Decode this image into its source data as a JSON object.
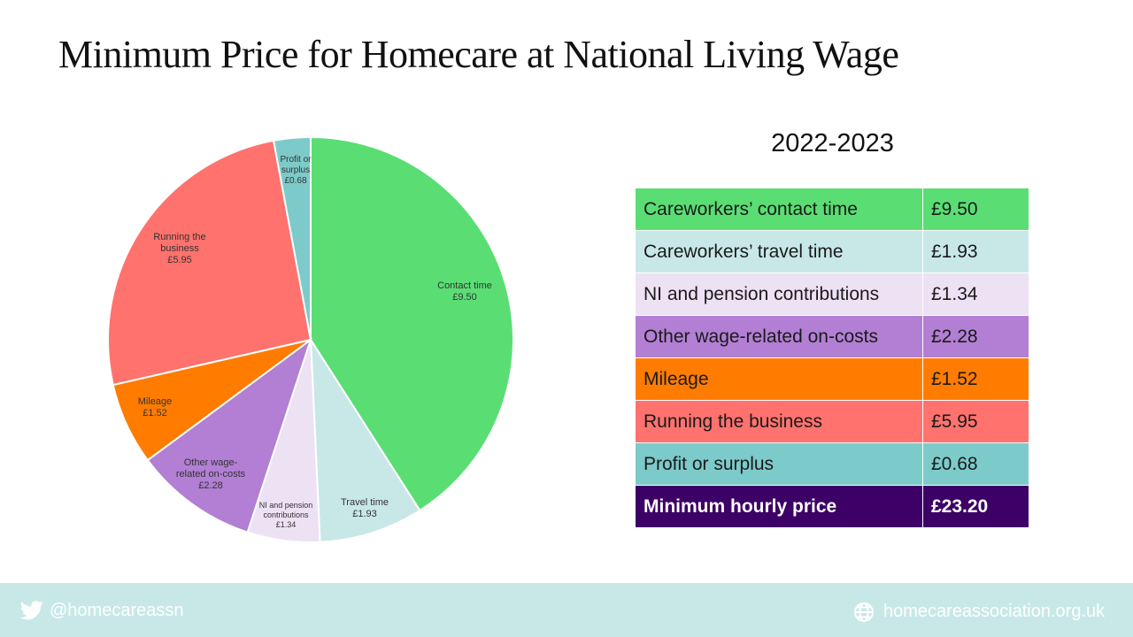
{
  "title": "Minimum Price for Homecare at National Living Wage",
  "year": "2022-2023",
  "chart_data": {
    "type": "pie",
    "slices": [
      {
        "label": "Contact time",
        "value": 9.5,
        "display": "£9.50",
        "color": "#5ade74"
      },
      {
        "label": "Travel time",
        "value": 1.93,
        "display": "£1.93",
        "color": "#c8e8e8"
      },
      {
        "label": "NI and pension contributions",
        "value": 1.34,
        "display": "£1.34",
        "color": "#ede1f4"
      },
      {
        "label": "Other wage-related on-costs",
        "value": 2.28,
        "display": "£2.28",
        "color": "#b27fd4"
      },
      {
        "label": "Mileage",
        "value": 1.52,
        "display": "£1.52",
        "color": "#ff7c00"
      },
      {
        "label": "Running the business",
        "value": 5.95,
        "display": "£5.95",
        "color": "#ff726e"
      },
      {
        "label": "Profit or surplus",
        "value": 0.68,
        "display": "£0.68",
        "color": "#7dcaca"
      }
    ]
  },
  "table": {
    "rows": [
      {
        "label": "Careworkers’ contact time",
        "value": "£9.50",
        "color": "#5ade74"
      },
      {
        "label": "Careworkers’ travel time",
        "value": "£1.93",
        "color": "#c8e8e8"
      },
      {
        "label": "NI and pension contributions",
        "value": "£1.34",
        "color": "#ede1f4"
      },
      {
        "label": "Other wage-related on-costs",
        "value": "£2.28",
        "color": "#b27fd4"
      },
      {
        "label": "Mileage",
        "value": "£1.52",
        "color": "#ff7c00"
      },
      {
        "label": "Running the business",
        "value": "£5.95",
        "color": "#ff726e"
      },
      {
        "label": "Profit or surplus",
        "value": "£0.68",
        "color": "#7dcaca"
      }
    ],
    "total": {
      "label": "Minimum hourly price",
      "value": "£23.20",
      "color": "#3d0066"
    }
  },
  "footer": {
    "twitter_icon": "twitter-bird-icon",
    "handle": "@homecareassn",
    "globe_icon": "globe-icon",
    "website": "homecareassociation.org.uk"
  }
}
